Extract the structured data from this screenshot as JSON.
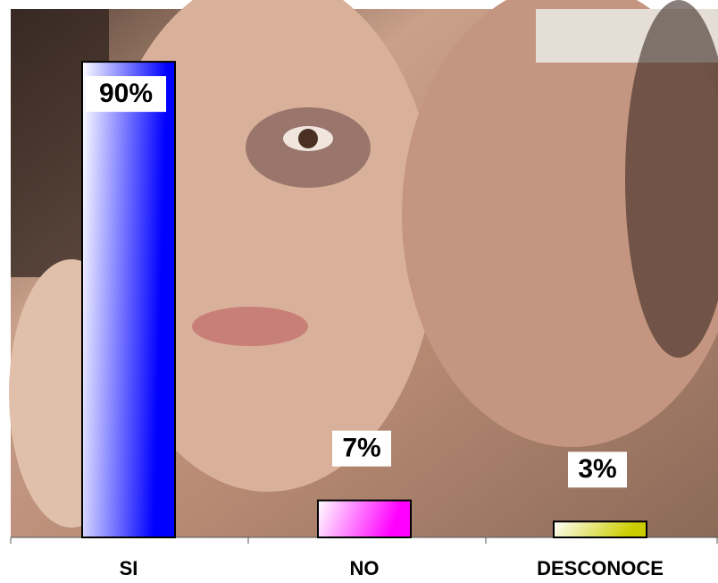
{
  "chart_data": {
    "type": "bar",
    "categories": [
      "SI",
      "NO",
      "DESCONOCE"
    ],
    "values": [
      90,
      7,
      3
    ],
    "value_labels": [
      "90%",
      "7%",
      "3%"
    ],
    "colors": [
      "#0000ff",
      "#ff00ff",
      "#cccc00"
    ],
    "ylim": [
      0,
      100
    ]
  }
}
